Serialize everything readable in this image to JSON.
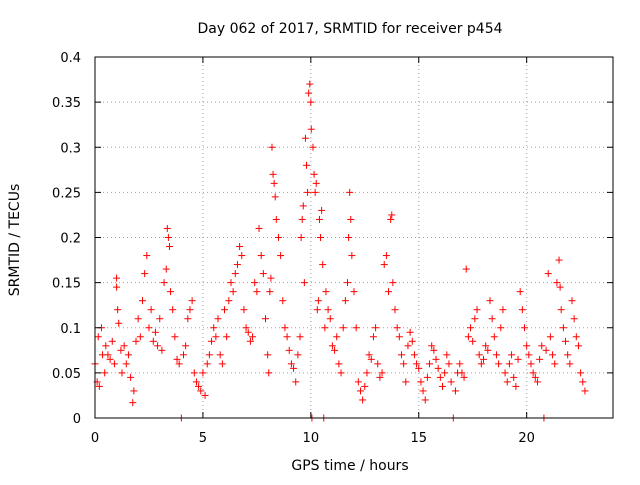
{
  "chart_data": {
    "type": "scatter",
    "title": "Day 062 of 2017, SRMTID for receiver p454",
    "xlabel": "GPS time / hours",
    "ylabel": "SRMTID / TECUs",
    "xlim": [
      0,
      24
    ],
    "ylim": [
      0,
      0.4
    ],
    "grid": true,
    "marker": "+",
    "color": "#ff0000",
    "x_ticks": [
      {
        "value": 0,
        "label": "0"
      },
      {
        "value": 5,
        "label": "5"
      },
      {
        "value": 10,
        "label": "10"
      },
      {
        "value": 15,
        "label": "15"
      },
      {
        "value": 20,
        "label": "20"
      }
    ],
    "y_ticks": [
      {
        "value": 0,
        "label": "0"
      },
      {
        "value": 0.05,
        "label": "0.05"
      },
      {
        "value": 0.1,
        "label": "0.1"
      },
      {
        "value": 0.15,
        "label": "0.15"
      },
      {
        "value": 0.2,
        "label": "0.2"
      },
      {
        "value": 0.25,
        "label": "0.25"
      },
      {
        "value": 0.3,
        "label": "0.3"
      },
      {
        "value": 0.35,
        "label": "0.35"
      },
      {
        "value": 0.4,
        "label": "0.4"
      }
    ],
    "series": [
      {
        "name": "SRMTID",
        "points": [
          [
            0.0,
            0.06
          ],
          [
            0.1,
            0.04
          ],
          [
            0.15,
            0.09
          ],
          [
            0.2,
            0.035
          ],
          [
            0.3,
            0.1
          ],
          [
            0.35,
            0.07
          ],
          [
            0.45,
            0.05
          ],
          [
            0.5,
            0.08
          ],
          [
            0.6,
            0.07
          ],
          [
            0.7,
            0.065
          ],
          [
            0.8,
            0.085
          ],
          [
            0.9,
            0.06
          ],
          [
            1.0,
            0.155
          ],
          [
            1.0,
            0.145
          ],
          [
            1.05,
            0.12
          ],
          [
            1.1,
            0.105
          ],
          [
            1.2,
            0.075
          ],
          [
            1.25,
            0.05
          ],
          [
            1.35,
            0.08
          ],
          [
            1.45,
            0.06
          ],
          [
            1.55,
            0.07
          ],
          [
            1.65,
            0.045
          ],
          [
            1.75,
            0.017
          ],
          [
            1.8,
            0.03
          ],
          [
            1.9,
            0.085
          ],
          [
            2.0,
            0.11
          ],
          [
            2.1,
            0.09
          ],
          [
            2.2,
            0.13
          ],
          [
            2.3,
            0.16
          ],
          [
            2.4,
            0.18
          ],
          [
            2.5,
            0.1
          ],
          [
            2.6,
            0.12
          ],
          [
            2.7,
            0.085
          ],
          [
            2.8,
            0.095
          ],
          [
            2.9,
            0.08
          ],
          [
            3.0,
            0.11
          ],
          [
            3.1,
            0.075
          ],
          [
            3.2,
            0.15
          ],
          [
            3.3,
            0.165
          ],
          [
            3.35,
            0.21
          ],
          [
            3.4,
            0.2
          ],
          [
            3.45,
            0.19
          ],
          [
            3.5,
            0.14
          ],
          [
            3.6,
            0.12
          ],
          [
            3.7,
            0.09
          ],
          [
            3.8,
            0.065
          ],
          [
            3.9,
            0.06
          ],
          [
            4.0,
            0.0
          ],
          [
            4.1,
            0.07
          ],
          [
            4.2,
            0.08
          ],
          [
            4.3,
            0.11
          ],
          [
            4.4,
            0.12
          ],
          [
            4.5,
            0.13
          ],
          [
            4.6,
            0.05
          ],
          [
            4.7,
            0.04
          ],
          [
            4.8,
            0.035
          ],
          [
            4.9,
            0.03
          ],
          [
            5.0,
            0.05
          ],
          [
            5.1,
            0.025
          ],
          [
            5.2,
            0.06
          ],
          [
            5.3,
            0.07
          ],
          [
            5.4,
            0.085
          ],
          [
            5.5,
            0.1
          ],
          [
            5.6,
            0.09
          ],
          [
            5.7,
            0.11
          ],
          [
            5.8,
            0.07
          ],
          [
            5.9,
            0.06
          ],
          [
            6.0,
            0.12
          ],
          [
            6.1,
            0.09
          ],
          [
            6.2,
            0.13
          ],
          [
            6.3,
            0.15
          ],
          [
            6.4,
            0.14
          ],
          [
            6.5,
            0.16
          ],
          [
            6.6,
            0.17
          ],
          [
            6.7,
            0.19
          ],
          [
            6.8,
            0.18
          ],
          [
            6.9,
            0.12
          ],
          [
            7.0,
            0.1
          ],
          [
            7.1,
            0.095
          ],
          [
            7.2,
            0.085
          ],
          [
            7.3,
            0.09
          ],
          [
            7.4,
            0.15
          ],
          [
            7.5,
            0.14
          ],
          [
            7.6,
            0.21
          ],
          [
            7.7,
            0.18
          ],
          [
            7.8,
            0.16
          ],
          [
            7.9,
            0.11
          ],
          [
            8.0,
            0.07
          ],
          [
            8.05,
            0.05
          ],
          [
            8.1,
            0.14
          ],
          [
            8.15,
            0.155
          ],
          [
            8.2,
            0.3
          ],
          [
            8.25,
            0.27
          ],
          [
            8.3,
            0.26
          ],
          [
            8.35,
            0.245
          ],
          [
            8.4,
            0.22
          ],
          [
            8.5,
            0.2
          ],
          [
            8.6,
            0.18
          ],
          [
            8.7,
            0.13
          ],
          [
            8.8,
            0.1
          ],
          [
            8.9,
            0.09
          ],
          [
            9.0,
            0.075
          ],
          [
            9.1,
            0.06
          ],
          [
            9.2,
            0.055
          ],
          [
            9.3,
            0.04
          ],
          [
            9.4,
            0.07
          ],
          [
            9.5,
            0.09
          ],
          [
            9.55,
            0.2
          ],
          [
            9.6,
            0.22
          ],
          [
            9.65,
            0.235
          ],
          [
            9.7,
            0.15
          ],
          [
            9.75,
            0.31
          ],
          [
            9.8,
            0.28
          ],
          [
            9.85,
            0.25
          ],
          [
            9.9,
            0.36
          ],
          [
            9.95,
            0.37
          ],
          [
            10.0,
            0.35
          ],
          [
            10.02,
            0.32
          ],
          [
            10.05,
            0.0
          ],
          [
            10.1,
            0.3
          ],
          [
            10.15,
            0.27
          ],
          [
            10.2,
            0.25
          ],
          [
            10.25,
            0.26
          ],
          [
            10.3,
            0.12
          ],
          [
            10.35,
            0.13
          ],
          [
            10.4,
            0.22
          ],
          [
            10.45,
            0.2
          ],
          [
            10.5,
            0.23
          ],
          [
            10.55,
            0.17
          ],
          [
            10.6,
            0.0
          ],
          [
            10.65,
            0.1
          ],
          [
            10.7,
            0.14
          ],
          [
            10.8,
            0.12
          ],
          [
            10.9,
            0.11
          ],
          [
            11.0,
            0.08
          ],
          [
            11.1,
            0.075
          ],
          [
            11.2,
            0.09
          ],
          [
            11.3,
            0.06
          ],
          [
            11.4,
            0.05
          ],
          [
            11.5,
            0.1
          ],
          [
            11.6,
            0.13
          ],
          [
            11.7,
            0.15
          ],
          [
            11.75,
            0.2
          ],
          [
            11.8,
            0.25
          ],
          [
            11.85,
            0.22
          ],
          [
            11.9,
            0.18
          ],
          [
            12.0,
            0.14
          ],
          [
            12.1,
            0.1
          ],
          [
            12.2,
            0.04
          ],
          [
            12.3,
            0.03
          ],
          [
            12.4,
            0.02
          ],
          [
            12.5,
            0.035
          ],
          [
            12.6,
            0.05
          ],
          [
            12.7,
            0.07
          ],
          [
            12.8,
            0.065
          ],
          [
            12.9,
            0.09
          ],
          [
            13.0,
            0.1
          ],
          [
            13.1,
            0.06
          ],
          [
            13.2,
            0.045
          ],
          [
            13.3,
            0.05
          ],
          [
            13.4,
            0.17
          ],
          [
            13.5,
            0.18
          ],
          [
            13.6,
            0.14
          ],
          [
            13.7,
            0.22
          ],
          [
            13.75,
            0.225
          ],
          [
            13.8,
            0.15
          ],
          [
            13.9,
            0.12
          ],
          [
            14.0,
            0.1
          ],
          [
            14.1,
            0.09
          ],
          [
            14.2,
            0.07
          ],
          [
            14.3,
            0.06
          ],
          [
            14.4,
            0.04
          ],
          [
            14.5,
            0.08
          ],
          [
            14.6,
            0.095
          ],
          [
            14.7,
            0.085
          ],
          [
            14.8,
            0.07
          ],
          [
            14.9,
            0.06
          ],
          [
            15.0,
            0.055
          ],
          [
            15.1,
            0.04
          ],
          [
            15.2,
            0.03
          ],
          [
            15.3,
            0.02
          ],
          [
            15.4,
            0.045
          ],
          [
            15.5,
            0.06
          ],
          [
            15.6,
            0.08
          ],
          [
            15.7,
            0.075
          ],
          [
            15.8,
            0.065
          ],
          [
            15.9,
            0.055
          ],
          [
            16.0,
            0.045
          ],
          [
            16.1,
            0.035
          ],
          [
            16.2,
            0.05
          ],
          [
            16.3,
            0.07
          ],
          [
            16.4,
            0.06
          ],
          [
            16.5,
            0.04
          ],
          [
            16.6,
            0.0
          ],
          [
            16.7,
            0.03
          ],
          [
            16.8,
            0.05
          ],
          [
            16.9,
            0.06
          ],
          [
            17.0,
            0.05
          ],
          [
            17.1,
            0.045
          ],
          [
            17.2,
            0.165
          ],
          [
            17.3,
            0.09
          ],
          [
            17.4,
            0.1
          ],
          [
            17.5,
            0.085
          ],
          [
            17.6,
            0.11
          ],
          [
            17.7,
            0.12
          ],
          [
            17.8,
            0.07
          ],
          [
            17.9,
            0.06
          ],
          [
            18.0,
            0.065
          ],
          [
            18.1,
            0.08
          ],
          [
            18.2,
            0.075
          ],
          [
            18.3,
            0.13
          ],
          [
            18.4,
            0.11
          ],
          [
            18.5,
            0.09
          ],
          [
            18.6,
            0.07
          ],
          [
            18.7,
            0.06
          ],
          [
            18.8,
            0.1
          ],
          [
            18.9,
            0.12
          ],
          [
            19.0,
            0.05
          ],
          [
            19.1,
            0.04
          ],
          [
            19.2,
            0.06
          ],
          [
            19.3,
            0.07
          ],
          [
            19.4,
            0.045
          ],
          [
            19.5,
            0.035
          ],
          [
            19.6,
            0.065
          ],
          [
            19.7,
            0.14
          ],
          [
            19.8,
            0.12
          ],
          [
            19.9,
            0.1
          ],
          [
            20.0,
            0.08
          ],
          [
            20.1,
            0.07
          ],
          [
            20.2,
            0.06
          ],
          [
            20.3,
            0.05
          ],
          [
            20.4,
            0.045
          ],
          [
            20.5,
            0.04
          ],
          [
            20.6,
            0.065
          ],
          [
            20.7,
            0.08
          ],
          [
            20.8,
            0.0
          ],
          [
            20.9,
            0.075
          ],
          [
            21.0,
            0.16
          ],
          [
            21.1,
            0.09
          ],
          [
            21.2,
            0.07
          ],
          [
            21.3,
            0.06
          ],
          [
            21.4,
            0.15
          ],
          [
            21.5,
            0.175
          ],
          [
            21.55,
            0.145
          ],
          [
            21.6,
            0.12
          ],
          [
            21.7,
            0.1
          ],
          [
            21.8,
            0.085
          ],
          [
            21.9,
            0.07
          ],
          [
            22.0,
            0.06
          ],
          [
            22.1,
            0.13
          ],
          [
            22.2,
            0.11
          ],
          [
            22.3,
            0.09
          ],
          [
            22.4,
            0.08
          ],
          [
            22.5,
            0.05
          ],
          [
            22.6,
            0.04
          ],
          [
            22.7,
            0.03
          ]
        ]
      }
    ]
  }
}
